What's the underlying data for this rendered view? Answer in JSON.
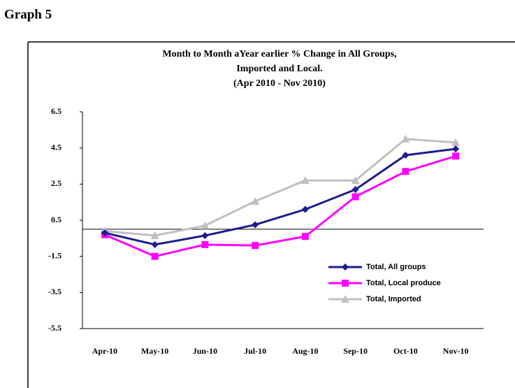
{
  "heading": "Graph 5",
  "chart_data": {
    "type": "line",
    "title": [
      "Month to Month aYear earlier % Change in All Groups,",
      "Imported and Local.",
      "(Apr 2010 - Nov 2010)"
    ],
    "categories": [
      "Apr-10",
      "May-10",
      "Jun-10",
      "Jul-10",
      "Aug-10",
      "Sep-10",
      "Oct-10",
      "Nov-10"
    ],
    "series": [
      {
        "name": "Total, All groups",
        "color": "#1c1c8e",
        "marker": "diamond",
        "values": [
          -0.2,
          -0.85,
          -0.35,
          0.25,
          1.1,
          2.2,
          4.1,
          4.45
        ]
      },
      {
        "name": "Total, Local produce",
        "color": "#ff00ff",
        "marker": "square",
        "values": [
          -0.3,
          -1.5,
          -0.85,
          -0.9,
          -0.4,
          1.8,
          3.2,
          4.05
        ]
      },
      {
        "name": "Total, Imported",
        "color": "#c0c0c0",
        "marker": "triangle",
        "values": [
          -0.1,
          -0.35,
          0.2,
          1.55,
          2.7,
          2.7,
          5.0,
          4.8
        ]
      }
    ],
    "ylim": [
      -5.5,
      6.5
    ],
    "yticks": [
      6.5,
      4.5,
      2.5,
      0.5,
      -1.5,
      -3.5,
      -5.5
    ],
    "zero_line": true,
    "legend": "lower-right"
  }
}
